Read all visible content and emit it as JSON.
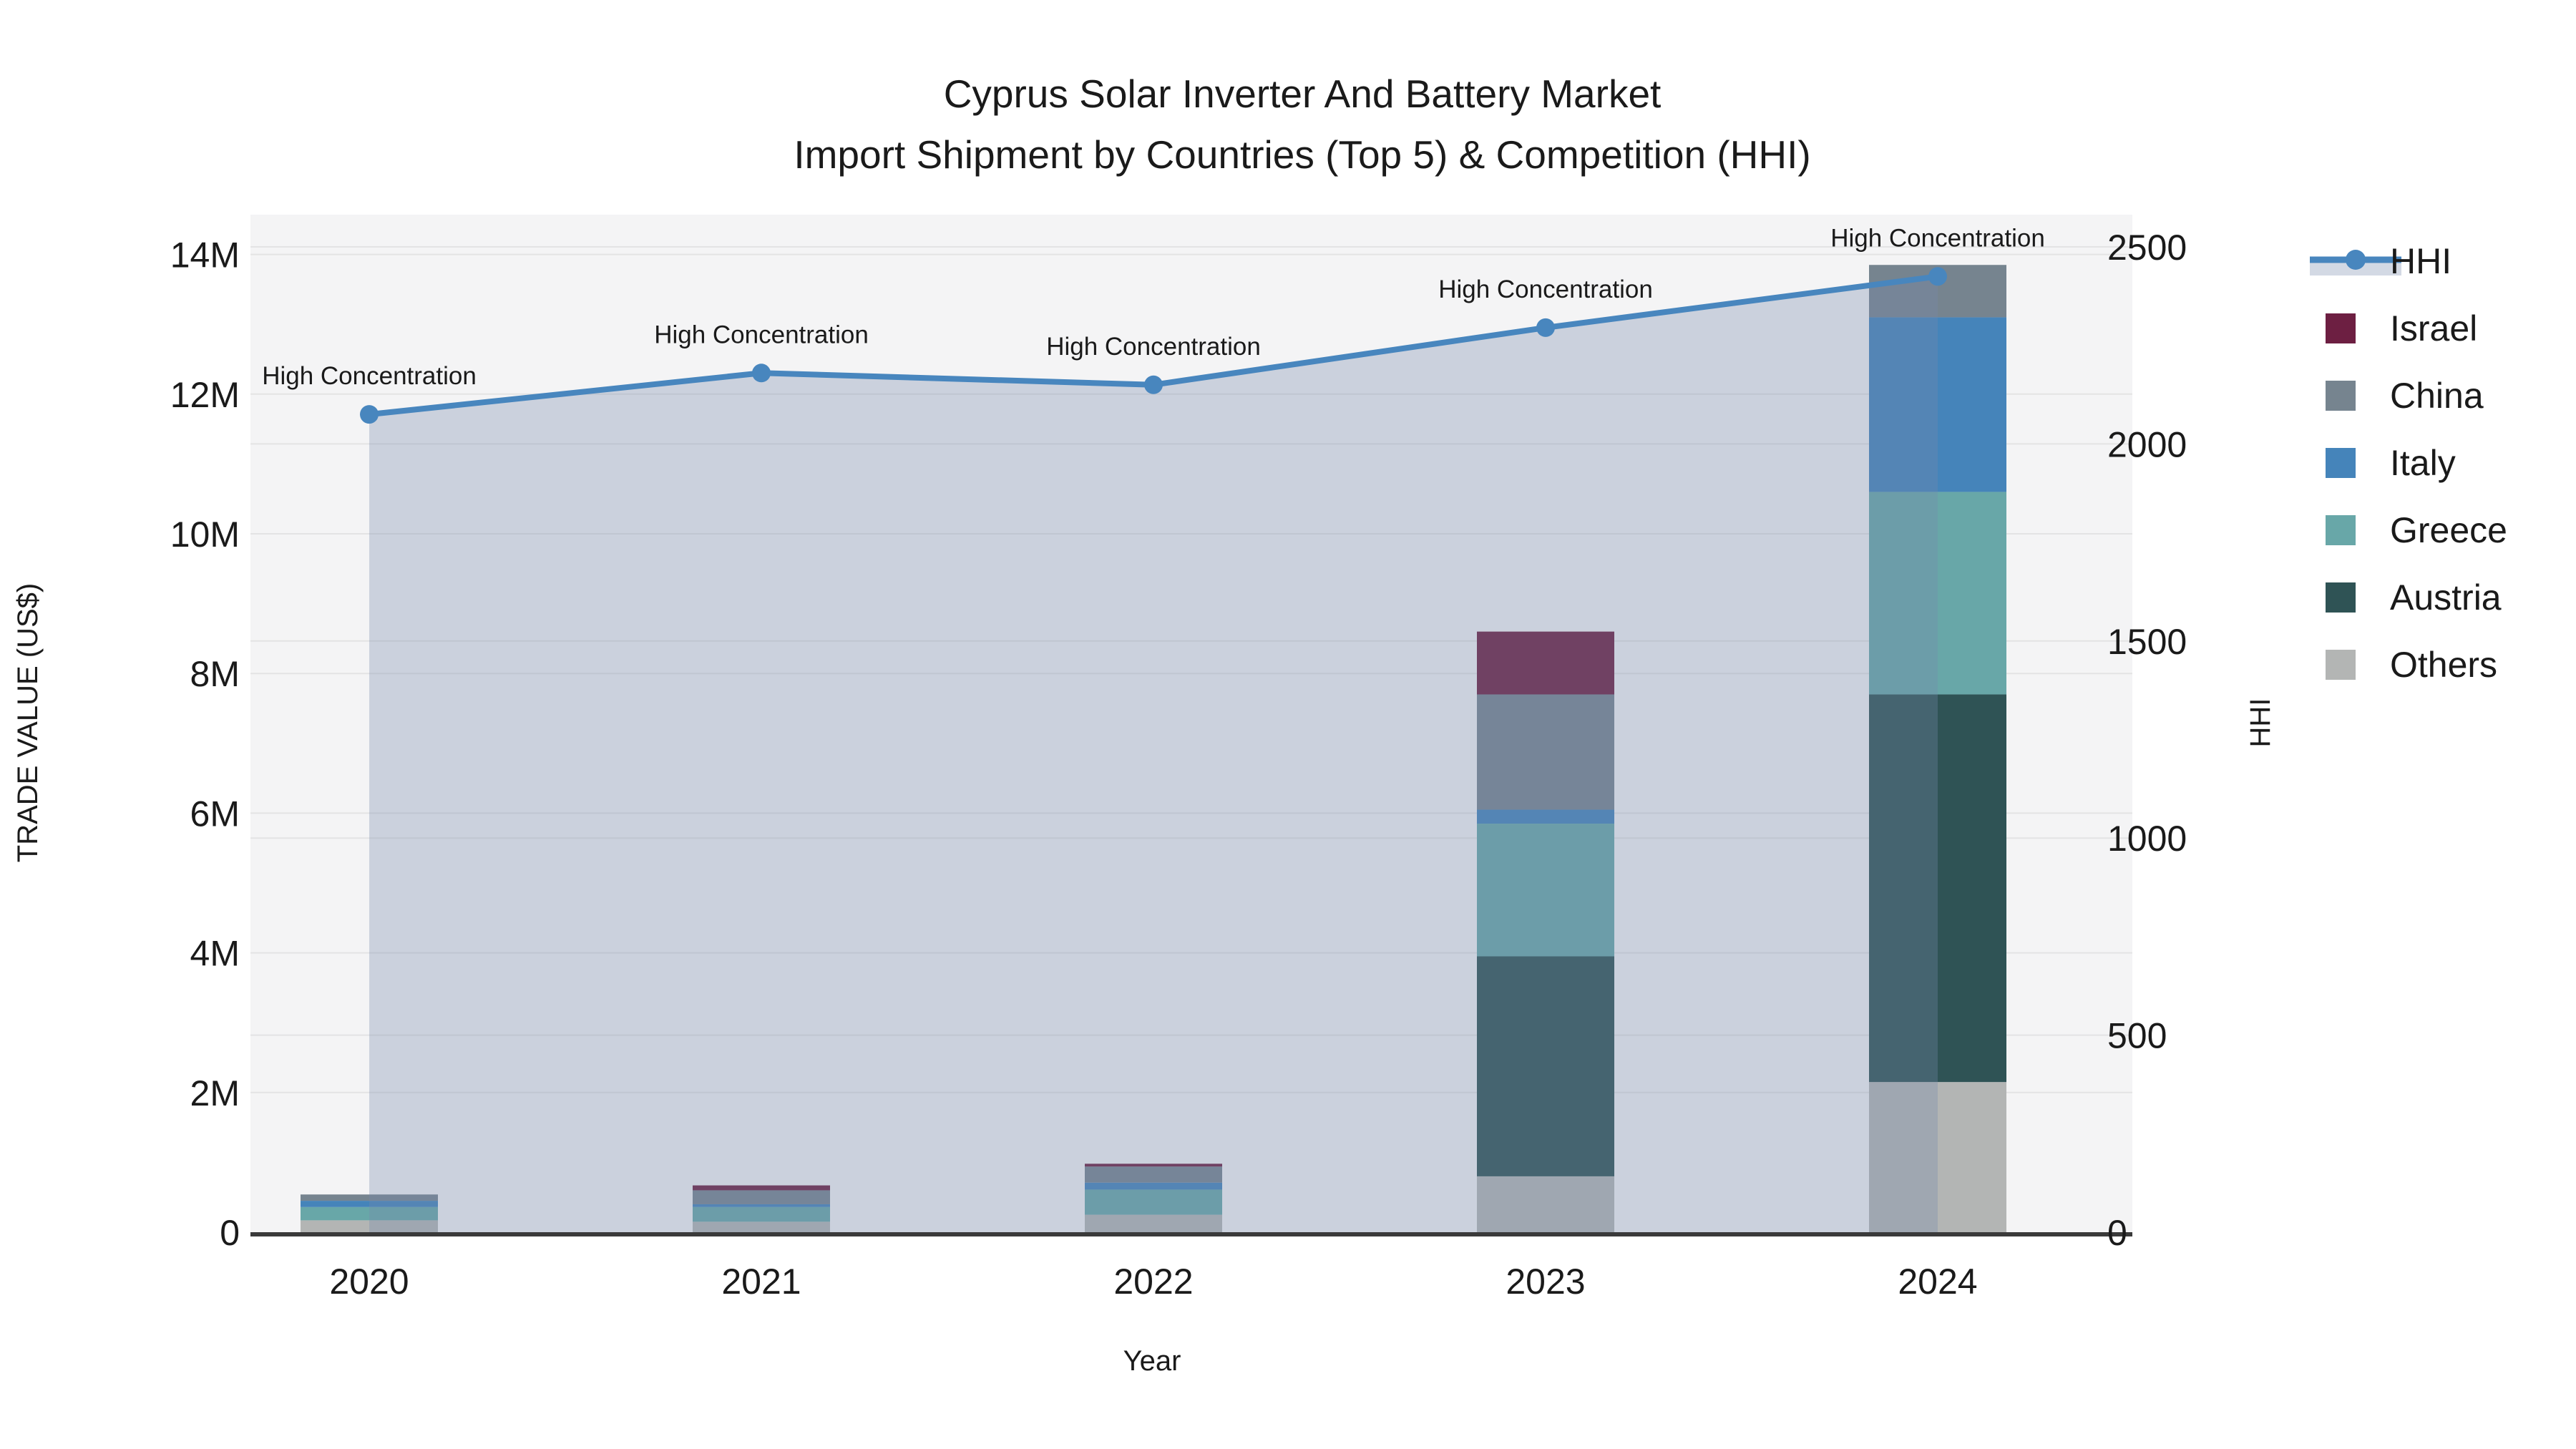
{
  "title": {
    "line1": "Cyprus Solar Inverter And Battery Market",
    "line2": "Import Shipment by Countries (Top 5) & Competition (HHI)"
  },
  "chart_data": {
    "type": "combo",
    "subtype": "stacked-bar + line-with-area",
    "categories": [
      "2020",
      "2021",
      "2022",
      "2023",
      "2024"
    ],
    "bar_value_unit": "million US$",
    "series": [
      {
        "name": "Israel",
        "color": "#6D1F42",
        "values": [
          0,
          0.07,
          0.04,
          0.9,
          0
        ]
      },
      {
        "name": "China",
        "color": "#76848F",
        "values": [
          0.09,
          0.2,
          0.23,
          1.65,
          0.75
        ]
      },
      {
        "name": "Italy",
        "color": "#4584BA",
        "values": [
          0.09,
          0.04,
          0.1,
          0.2,
          2.5
        ]
      },
      {
        "name": "Greece",
        "color": "#68A7A8",
        "values": [
          0.19,
          0.21,
          0.36,
          1.9,
          2.9
        ]
      },
      {
        "name": "Austria",
        "color": "#2F5355",
        "values": [
          0,
          0,
          0,
          3.15,
          5.55
        ]
      },
      {
        "name": "Others",
        "color": "#B3B5B4",
        "values": [
          0.17,
          0.15,
          0.25,
          0.8,
          2.15
        ]
      }
    ],
    "stack_order_bottom_to_top": [
      "Others",
      "Austria",
      "Greece",
      "Italy",
      "China",
      "Israel"
    ],
    "line_series": {
      "name": "HHI",
      "color": "#4886BE",
      "area_fill": "rgba(119,137,170,0.32)",
      "legend_band_color": "#D3D9E4",
      "values": [
        2075,
        2180,
        2150,
        2295,
        2425
      ],
      "point_annotations": [
        "High Concentration",
        "High Concentration",
        "High Concentration",
        "High Concentration",
        "High Concentration"
      ]
    },
    "x_axis": {
      "label": "Year",
      "tick_labels": [
        "2020",
        "2021",
        "2022",
        "2023",
        "2024"
      ]
    },
    "y_axis_left": {
      "label": "TRADE VALUE (US$)",
      "tick_labels": [
        "0",
        "2M",
        "4M",
        "6M",
        "8M",
        "10M",
        "12M",
        "14M"
      ],
      "tick_values": [
        0,
        2,
        4,
        6,
        8,
        10,
        12,
        14
      ],
      "range": [
        0,
        14.55
      ]
    },
    "y_axis_right": {
      "label": "HHI",
      "tick_labels": [
        "0",
        "500",
        "1000",
        "1500",
        "2000",
        "2500"
      ],
      "tick_values": [
        0,
        500,
        1000,
        1500,
        2000,
        2500
      ],
      "range": [
        0,
        2500
      ]
    },
    "legend": {
      "items": [
        "HHI",
        "Israel",
        "China",
        "Italy",
        "Greece",
        "Austria",
        "Others"
      ]
    },
    "style": {
      "plot_bg": "#F4F4F5",
      "grid_color": "#E3E3E4",
      "axis_line_color": "#3A3A3A",
      "text_color": "#1A1A1A"
    }
  }
}
